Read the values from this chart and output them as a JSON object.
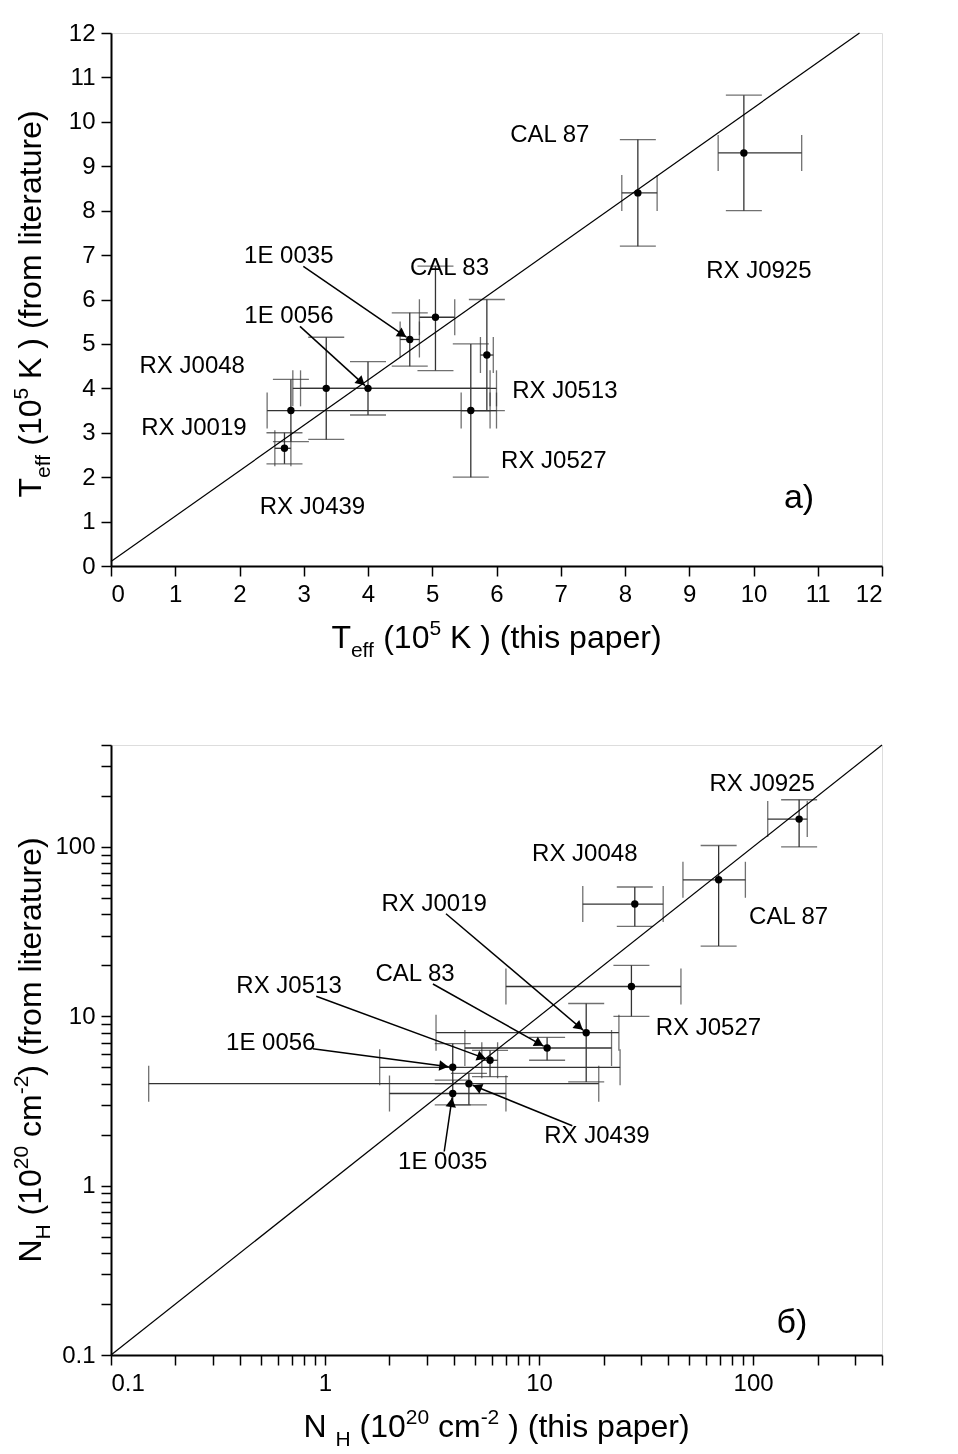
{
  "chart_data": [
    {
      "type": "scatter",
      "xlabel": "T$_{eff}$ (10$^{5}$ K ) (this paper)",
      "ylabel": "T$_{eff}$ (10$^{5}$ K )  (from literature)",
      "xlim": [
        0,
        12
      ],
      "ylim": [
        0,
        12
      ],
      "xticks": [
        0,
        1,
        2,
        3,
        4,
        5,
        6,
        7,
        8,
        9,
        10,
        11,
        12
      ],
      "yticks": [
        0,
        1,
        2,
        3,
        4,
        5,
        6,
        7,
        8,
        9,
        10,
        11,
        12
      ],
      "marker": "circle",
      "legend": false,
      "grid": false,
      "series": [
        {
          "type": "scatter",
          "color": "#000000",
          "x": [
            2.7,
            2.8,
            3.35,
            4.0,
            4.65,
            5.05,
            5.6,
            5.85,
            8.2,
            9.85
          ],
          "values": [
            2.65,
            3.5,
            4.0,
            4.0,
            5.1,
            5.6,
            3.5,
            4.75,
            8.4,
            9.3
          ],
          "errors": [
            [
              2.3,
              3.0
            ],
            [
              2.8,
              4.2
            ],
            [
              2.85,
              5.15
            ],
            [
              3.4,
              4.6
            ],
            [
              4.5,
              5.7
            ],
            [
              4.4,
              6.75
            ],
            [
              2.0,
              5.0
            ],
            [
              3.5,
              6.0
            ],
            [
              7.2,
              9.6
            ],
            [
              8.0,
              10.6
            ]
          ],
          "xerrors": [
            [
              2.55,
              2.8
            ],
            [
              2.43,
              5.9
            ],
            [
              2.83,
              5.9
            ],
            [
              2.95,
              6.0
            ],
            [
              4.5,
              4.8
            ],
            [
              4.8,
              5.35
            ],
            [
              5.45,
              6.0
            ],
            [
              5.75,
              5.95
            ],
            [
              7.95,
              8.5
            ],
            [
              9.45,
              10.75
            ]
          ]
        },
        {
          "type": "line",
          "color": "#000000",
          "marker": "none",
          "x": [
            0,
            11.65
          ],
          "values": [
            0.1,
            12
          ]
        }
      ],
      "annotations": [
        {
          "text": "RX J0439",
          "x": 2.7,
          "y": 2.65
        },
        {
          "text": "RX J0019",
          "x": 2.8,
          "y": 3.5
        },
        "RX J0048",
        {
          "text": "1E 0056",
          "x": 4.0,
          "y": 4.0
        },
        {
          "text": "1E 0035",
          "x": 4.65,
          "y": 5.1
        },
        {
          "text": "CAL 83",
          "x": 5.05,
          "y": 5.6
        },
        {
          "text": "RX J0527",
          "x": 5.6,
          "y": 3.5
        },
        {
          "text": "RX J0513",
          "x": 5.85,
          "y": 4.75
        },
        {
          "text": "CAL 87",
          "x": 8.2,
          "y": 8.4
        },
        "RX J0925",
        "a)"
      ]
    },
    {
      "type": "scatter",
      "xlabel": "N $_{H}$ (10$^{20}$ cm$^{-2}$ ) (this paper)",
      "ylabel": "N$_{H}$ (10$^{20}$ cm$^{-2}$) (from literature)",
      "xlim": [
        0.1,
        400
      ],
      "ylim": [
        0.1,
        400
      ],
      "log": "xy",
      "marker": "circle",
      "legend": false,
      "grid": false,
      "xticks": [
        0.1,
        {
          "value": 0.2,
          "label": null
        },
        {
          "value": 0.3,
          "label": null
        },
        {
          "value": 0.4,
          "label": null
        },
        {
          "value": 0.5,
          "label": null
        },
        {
          "value": 0.6,
          "label": null
        },
        {
          "value": 0.7,
          "label": null
        },
        {
          "value": 0.8,
          "label": null
        },
        {
          "value": 0.9,
          "label": null
        },
        1,
        {
          "value": 2,
          "label": null
        },
        {
          "value": 3,
          "label": null
        },
        {
          "value": 4,
          "label": null
        },
        {
          "value": 5,
          "label": null
        },
        {
          "value": 6,
          "label": null
        },
        {
          "value": 7,
          "label": null
        },
        {
          "value": 8,
          "label": null
        },
        {
          "value": 9,
          "label": null
        },
        10,
        {
          "value": 20,
          "label": null
        },
        {
          "value": 30,
          "label": null
        },
        {
          "value": 40,
          "label": null
        },
        {
          "value": 50,
          "label": null
        },
        {
          "value": 60,
          "label": null
        },
        {
          "value": 70,
          "label": null
        },
        {
          "value": 80,
          "label": null
        },
        {
          "value": 90,
          "label": null
        },
        100,
        {
          "value": 200,
          "label": null
        },
        {
          "value": 300,
          "label": null
        },
        {
          "value": 400,
          "label": null
        }
      ],
      "yticks": [
        0.1,
        {
          "value": 0.2,
          "label": null
        },
        {
          "value": 0.3,
          "label": null
        },
        {
          "value": 0.4,
          "label": null
        },
        {
          "value": 0.5,
          "label": null
        },
        {
          "value": 0.6,
          "label": null
        },
        {
          "value": 0.7,
          "label": null
        },
        {
          "value": 0.8,
          "label": null
        },
        {
          "value": 0.9,
          "label": null
        },
        1,
        {
          "value": 2,
          "label": null
        },
        {
          "value": 3,
          "label": null
        },
        {
          "value": 4,
          "label": null
        },
        {
          "value": 5,
          "label": null
        },
        {
          "value": 6,
          "label": null
        },
        {
          "value": 7,
          "label": null
        },
        {
          "value": 8,
          "label": null
        },
        {
          "value": 9,
          "label": null
        },
        10,
        {
          "value": 20,
          "label": null
        },
        {
          "value": 30,
          "label": null
        },
        {
          "value": 40,
          "label": null
        },
        {
          "value": 50,
          "label": null
        },
        {
          "value": 60,
          "label": null
        },
        {
          "value": 70,
          "label": null
        },
        {
          "value": 80,
          "label": null
        },
        {
          "value": 90,
          "label": null
        },
        100,
        {
          "value": 200,
          "label": null
        },
        {
          "value": 300,
          "label": null
        },
        {
          "value": 400,
          "label": null
        }
      ],
      "series": [
        {
          "type": "scatter",
          "color": "#000000",
          "x": [
            164,
            69,
            28,
            27,
            16.6,
            10.9,
            5.9,
            3.95,
            4.7,
            3.95
          ],
          "values": [
            146,
            64,
            46,
            15,
            8.0,
            6.5,
            5.5,
            5.0,
            4.0,
            3.5
          ],
          "errors": [
            [
              100,
              190
            ],
            [
              26,
              102
            ],
            [
              34,
              58
            ],
            [
              10,
              20
            ],
            [
              4.1,
              11.9
            ],
            [
              5.5,
              7.5
            ],
            [
              4.4,
              6.3
            ],
            [
              4.0,
              6.9
            ],
            [
              3.0,
              4.6
            ],
            [
              3.0,
              4.2
            ]
          ],
          "xerrors": [
            [
              117,
              179
            ],
            [
              47,
              92
            ],
            [
              16,
              38
            ],
            [
              7.0,
              46
            ],
            [
              3.3,
              23.6
            ],
            [
              4.5,
              21.8
            ],
            [
              5.4,
              6.4
            ],
            [
              1.8,
              23.9
            ],
            [
              0.15,
              19
            ],
            [
              2.0,
              7.0
            ]
          ]
        },
        {
          "type": "line",
          "color": "#000000",
          "marker": "none",
          "x": [
            0.1,
            400
          ],
          "values": [
            0.1,
            400
          ]
        }
      ],
      "annotations": [
        {
          "text": "RX J0925",
          "x": 164,
          "y": 146
        },
        {
          "text": "CAL 87",
          "x": 69,
          "y": 64
        },
        {
          "text": "RX J0048",
          "x": 28,
          "y": 46
        },
        {
          "text": "RX J0527",
          "x": 27,
          "y": 15
        },
        {
          "text": "RX J0019",
          "x": 16.6,
          "y": 8.0
        },
        {
          "text": "CAL 83",
          "x": 10.9,
          "y": 6.5
        },
        {
          "text": "RX J0513",
          "x": 5.9,
          "y": 5.5
        },
        {
          "text": "1E 0056",
          "x": 3.95,
          "y": 5.0
        },
        {
          "text": "RX J0439",
          "x": 4.7,
          "y": 4.0
        },
        {
          "text": "1E 0035",
          "x": 3.95,
          "y": 3.5
        },
        "б)"
      ]
    }
  ]
}
